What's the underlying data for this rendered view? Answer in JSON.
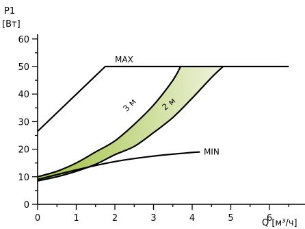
{
  "chart_data": {
    "type": "line",
    "ylabel_line1": "P1",
    "ylabel_line2": "[Вт]",
    "xlabel": "Q [м³/ч]",
    "xlim": [
      0,
      7
    ],
    "ylim": [
      0,
      60
    ],
    "x_ticks": [
      "0",
      "1",
      "2",
      "3",
      "4",
      "5",
      "6"
    ],
    "y_ticks": [
      "0",
      "10",
      "20",
      "30",
      "40",
      "50",
      "60"
    ],
    "grid": false,
    "colors": {
      "line": "#000000",
      "fill_start": "#9fbf3f",
      "fill_end": "#eef3dc"
    },
    "series": [
      {
        "name": "MAX",
        "points": [
          [
            0,
            26.5
          ],
          [
            1.75,
            50
          ],
          [
            6.5,
            50
          ]
        ]
      },
      {
        "name": "3 м",
        "points": [
          [
            0,
            10
          ],
          [
            0.5,
            12
          ],
          [
            1,
            15
          ],
          [
            1.5,
            19
          ],
          [
            2,
            23
          ],
          [
            2.5,
            29
          ],
          [
            3,
            36
          ],
          [
            3.5,
            45
          ],
          [
            3.7,
            50
          ]
        ]
      },
      {
        "name": "2 м",
        "points": [
          [
            0,
            8.5
          ],
          [
            0.5,
            10
          ],
          [
            1,
            12
          ],
          [
            1.5,
            14.5
          ],
          [
            2,
            18
          ],
          [
            2.5,
            21
          ],
          [
            3,
            26
          ],
          [
            3.5,
            31.5
          ],
          [
            4,
            38.5
          ],
          [
            4.5,
            46
          ],
          [
            4.8,
            50
          ]
        ]
      },
      {
        "name": "MIN",
        "points": [
          [
            0,
            9
          ],
          [
            1,
            12.5
          ],
          [
            2,
            15.5
          ],
          [
            3,
            17.5
          ],
          [
            4,
            18.8
          ],
          [
            4.2,
            19
          ]
        ]
      }
    ],
    "annotations": [
      {
        "text": "MAX",
        "x": 2.0,
        "y": 51.5
      },
      {
        "text": "3 м",
        "x": 2.3,
        "y": 33.5,
        "angle": -45
      },
      {
        "text": "2 м",
        "x": 3.3,
        "y": 34,
        "angle": -40
      },
      {
        "text": "MIN",
        "x": 4.3,
        "y": 18
      }
    ]
  }
}
